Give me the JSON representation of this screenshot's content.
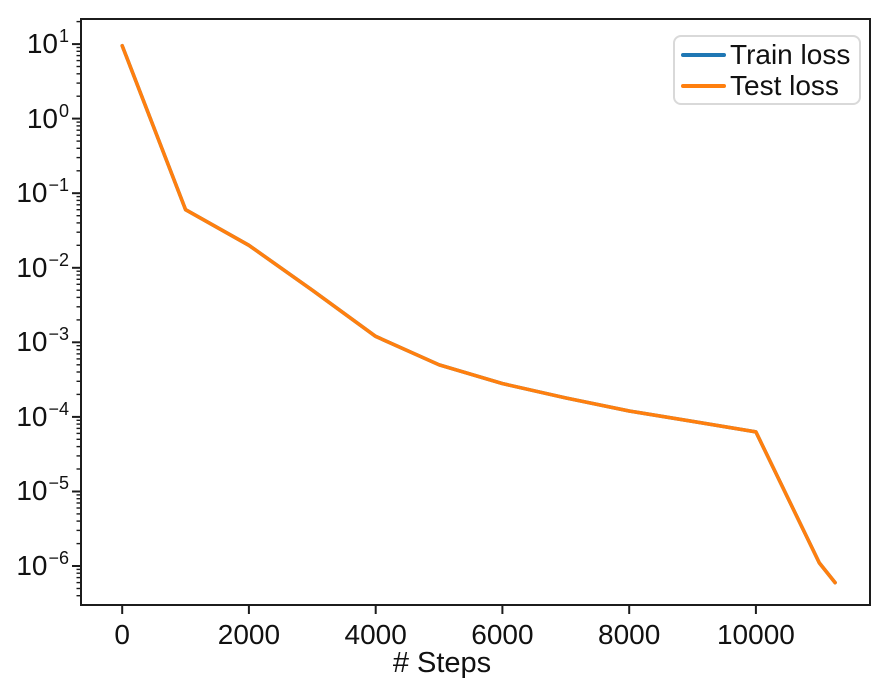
{
  "chart_data": {
    "type": "line",
    "title": "",
    "xlabel": "# Steps",
    "ylabel": "",
    "yscale": "log",
    "grid": false,
    "x": [
      0,
      1000,
      2000,
      3000,
      4000,
      5000,
      6000,
      7000,
      8000,
      9000,
      10000,
      11000,
      11250
    ],
    "series": [
      {
        "name": "Train loss",
        "color": "#1f77b4",
        "values": [
          9.5,
          0.06,
          0.02,
          0.005,
          0.0012,
          0.0005,
          0.00028,
          0.00018,
          0.00012,
          8.7e-05,
          6.3e-05,
          1.1e-06,
          6e-07
        ]
      },
      {
        "name": "Test loss",
        "color": "#ff7f0e",
        "values": [
          9.5,
          0.06,
          0.02,
          0.005,
          0.0012,
          0.0005,
          0.00028,
          0.00018,
          0.00012,
          8.7e-05,
          6.3e-05,
          1.1e-06,
          6e-07
        ]
      }
    ],
    "x_ticks": [
      0,
      2000,
      4000,
      6000,
      8000,
      10000
    ],
    "x_tick_labels": [
      "0",
      "2000",
      "4000",
      "6000",
      "8000",
      "10000"
    ],
    "y_tick_exponents": [
      1,
      0,
      -1,
      -2,
      -3,
      -4,
      -5,
      -6
    ],
    "xlim": [
      -650,
      11800
    ],
    "ylim": [
      3e-07,
      21.7
    ],
    "legend": {
      "position": "upper right",
      "items": [
        "Train loss",
        "Test loss"
      ]
    }
  },
  "colors": {
    "axis": "#1c1c1c",
    "text": "#111111",
    "legend_border": "#d9d9d9",
    "background": "#ffffff"
  }
}
